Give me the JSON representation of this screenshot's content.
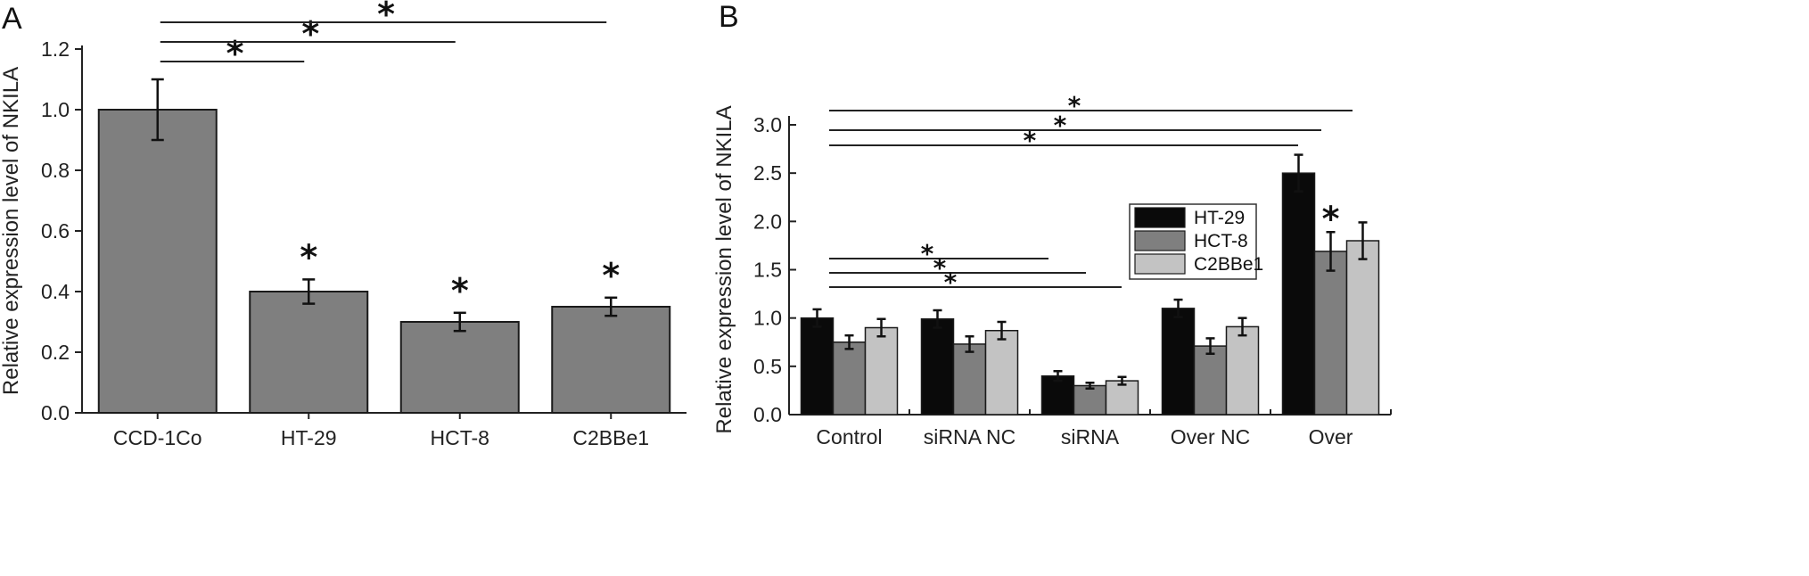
{
  "chart_data": [
    {
      "panel": "A",
      "type": "bar",
      "ylabel": "Relative expression level of NKILA",
      "ylim": [
        0,
        1.2
      ],
      "yticks": [
        "0.0",
        "0.2",
        "0.4",
        "0.6",
        "0.8",
        "1.0",
        "1.2"
      ],
      "categories": [
        "CCD-1Co",
        "HT-29",
        "HCT-8",
        "C2BBe1"
      ],
      "values": [
        1.0,
        0.4,
        0.3,
        0.35
      ],
      "errors": [
        0.1,
        0.04,
        0.03,
        0.03
      ],
      "bar_color": "#7f7f7f",
      "bar_stars": [
        "",
        "*",
        "*",
        "*"
      ],
      "comparisons": [
        {
          "from": "CCD-1Co",
          "to": "HT-29",
          "label": "*"
        },
        {
          "from": "CCD-1Co",
          "to": "HCT-8",
          "label": "*"
        },
        {
          "from": "CCD-1Co",
          "to": "C2BBe1",
          "label": "*"
        }
      ]
    },
    {
      "panel": "B",
      "type": "bar",
      "ylabel": "Relative expression level of NKILA",
      "ylim": [
        0,
        3.0
      ],
      "yticks": [
        "0.0",
        "0.5",
        "1.0",
        "1.5",
        "2.0",
        "2.5",
        "3.0"
      ],
      "categories": [
        "Control",
        "siRNA NC",
        "siRNA",
        "Over NC",
        "Over"
      ],
      "series": [
        {
          "name": "HT-29",
          "color": "#0a0a0a",
          "values": [
            1.0,
            0.99,
            0.4,
            1.1,
            2.5
          ],
          "errors": [
            0.09,
            0.09,
            0.05,
            0.09,
            0.19
          ]
        },
        {
          "name": "HCT-8",
          "color": "#7f7f7f",
          "values": [
            0.75,
            0.73,
            0.3,
            0.71,
            1.69
          ],
          "errors": [
            0.07,
            0.08,
            0.03,
            0.08,
            0.2
          ]
        },
        {
          "name": "C2BBe1",
          "color": "#c3c3c3",
          "values": [
            0.9,
            0.87,
            0.35,
            0.91,
            1.8
          ],
          "errors": [
            0.09,
            0.09,
            0.04,
            0.09,
            0.19
          ]
        }
      ],
      "legend_position": "right, middle height",
      "bar_stars": [
        {
          "category": "Over",
          "series": "HCT-8",
          "label": "*"
        }
      ],
      "comparisons": [
        {
          "from": "Control",
          "to": "Over",
          "label": "*"
        },
        {
          "from": "Control",
          "to": "Over",
          "label": "*"
        },
        {
          "from": "Control",
          "to": "Over",
          "label": "*"
        },
        {
          "from": "Control",
          "to": "siRNA",
          "label": "*"
        },
        {
          "from": "Control",
          "to": "siRNA",
          "label": "*"
        },
        {
          "from": "Control",
          "to": "siRNA",
          "label": "*"
        }
      ]
    }
  ]
}
